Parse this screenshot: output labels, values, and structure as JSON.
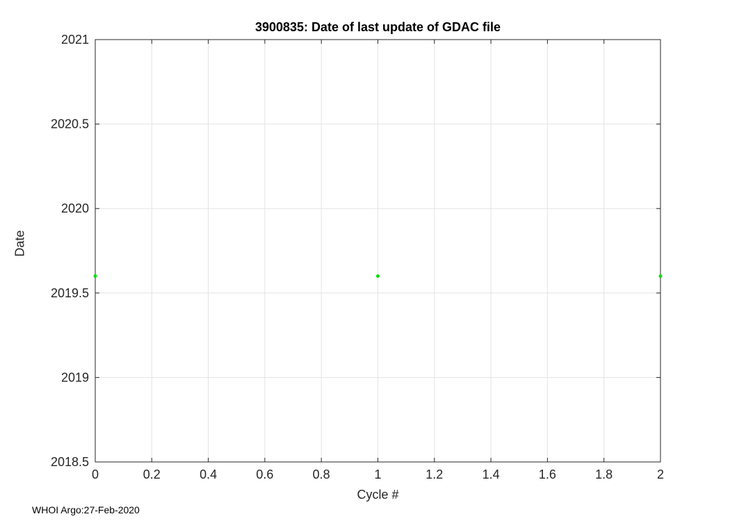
{
  "chart_data": {
    "type": "scatter",
    "title": "3900835: Date of last update of GDAC file",
    "xlabel": "Cycle #",
    "ylabel": "Date",
    "x": [
      0,
      1,
      2
    ],
    "y": [
      2019.6,
      2019.6,
      2019.6
    ],
    "xlim": [
      0,
      2
    ],
    "ylim": [
      2018.5,
      2021
    ],
    "xticks": [
      0,
      0.2,
      0.4,
      0.6,
      0.8,
      1,
      1.2,
      1.4,
      1.6,
      1.8,
      2
    ],
    "yticks": [
      2018.5,
      2019,
      2019.5,
      2020,
      2020.5,
      2021
    ],
    "grid": true,
    "legend": "none",
    "marker": "dot",
    "marker_color": "#00dd00",
    "axis_color": "#262626",
    "grid_color": "#e3e3e3",
    "background_color": "#ffffff"
  },
  "footer": {
    "note": "WHOI Argo:27-Feb-2020"
  }
}
